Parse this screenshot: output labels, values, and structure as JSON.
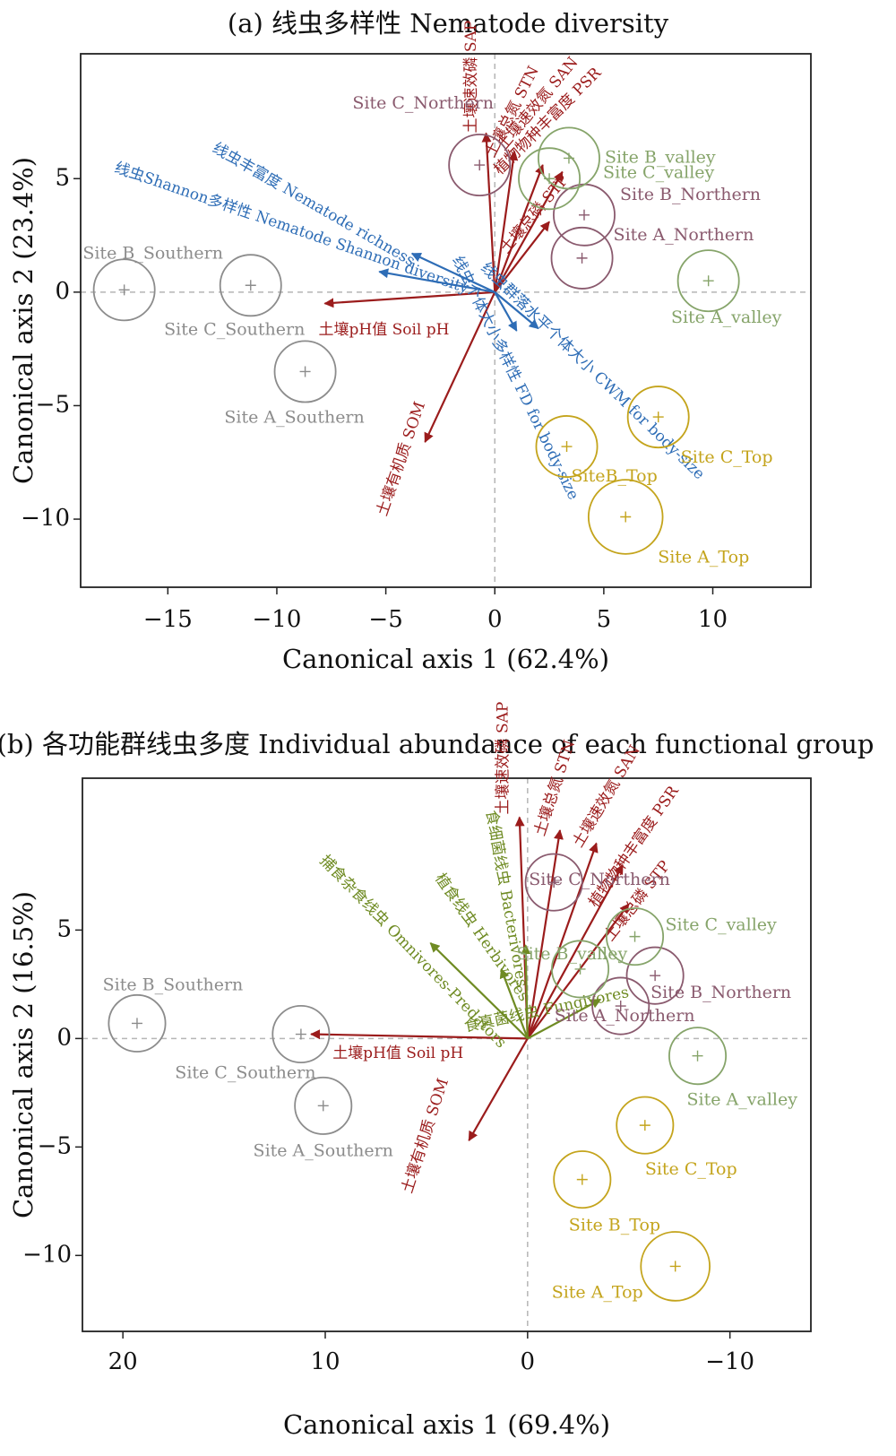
{
  "colors": {
    "soil": "#9b1c1c",
    "diversity": "#2e6db6",
    "functional": "#6f8b23",
    "southern": "#8c8c8c",
    "northern": "#8a5a6e",
    "valley": "#86a46a",
    "top": "#c4a41c"
  },
  "chart_data": [
    {
      "type": "scatter",
      "title": "(a) 线虫多样性 Nematode diversity",
      "xlabel": "Canonical axis 1 (62.4%)",
      "ylabel": "Canonical axis 2 (23.4%)",
      "xlim": [
        -19,
        14.5
      ],
      "ylim": [
        -13,
        10.5
      ],
      "xticks": [
        -15,
        -10,
        -5,
        0,
        5,
        10
      ],
      "yticks": [
        -10,
        -5,
        0,
        5
      ],
      "xtick_labels": [
        "−15",
        "−10",
        "−5",
        "0",
        "5",
        "10"
      ],
      "ytick_labels": [
        "−10",
        "−5",
        "0",
        "5"
      ],
      "sites": [
        {
          "name": "Site B_Southern",
          "group": "southern",
          "x": -17.0,
          "y": 0.1,
          "r": 1.4
        },
        {
          "name": "Site C_Southern",
          "group": "southern",
          "x": -11.2,
          "y": 0.3,
          "r": 1.4
        },
        {
          "name": "Site A_Southern",
          "group": "southern",
          "x": -8.7,
          "y": -3.5,
          "r": 1.4
        },
        {
          "name": "Site C_Northern",
          "group": "northern",
          "x": -0.7,
          "y": 5.6,
          "r": 1.4
        },
        {
          "name": "Site B_Northern",
          "group": "northern",
          "x": 4.1,
          "y": 3.4,
          "r": 1.4
        },
        {
          "name": "Site A_Northern",
          "group": "northern",
          "x": 4.0,
          "y": 1.5,
          "r": 1.4
        },
        {
          "name": "Site B_valley",
          "group": "valley",
          "x": 3.4,
          "y": 5.9,
          "r": 1.4
        },
        {
          "name": "Site C_valley",
          "group": "valley",
          "x": 2.5,
          "y": 5.0,
          "r": 1.4
        },
        {
          "name": "Site A_valley",
          "group": "valley",
          "x": 9.8,
          "y": 0.5,
          "r": 1.4
        },
        {
          "name": "Site C_Top",
          "group": "top",
          "x": 7.5,
          "y": -5.5,
          "r": 1.4
        },
        {
          "name": "SiteB_Top",
          "group": "top",
          "x": 3.3,
          "y": -6.8,
          "r": 1.4
        },
        {
          "name": "Site A_Top",
          "group": "top",
          "x": 6.0,
          "y": -9.9,
          "r": 1.7
        }
      ],
      "vectors": [
        {
          "label": "土壤速效磷 SAP",
          "group": "soil",
          "x": -0.4,
          "y": 7.0
        },
        {
          "label": "土壤总氮 STN",
          "group": "soil",
          "x": 0.9,
          "y": 6.2
        },
        {
          "label": "土壤速效氮 SAN",
          "group": "soil",
          "x": 2.2,
          "y": 5.6
        },
        {
          "label": "植物物种丰富度 PSR",
          "group": "soil",
          "x": 3.1,
          "y": 5.3
        },
        {
          "label": "土壤总磷 STP",
          "group": "soil",
          "x": 2.5,
          "y": 3.1
        },
        {
          "label": "土壤pH值 Soil pH",
          "group": "soil",
          "x": -7.8,
          "y": -0.5
        },
        {
          "label": "土壤有机质 SOM",
          "group": "soil",
          "x": -3.2,
          "y": -6.6
        },
        {
          "label": "线虫丰富度 Nematode richness",
          "group": "diversity",
          "x": -3.8,
          "y": 1.7
        },
        {
          "label": "线虫Shannon多样性 Nematode Shannon diversity",
          "group": "diversity",
          "x": -5.3,
          "y": 0.9
        },
        {
          "label": "线虫群落水平个体大小 CWM for body-size",
          "group": "diversity",
          "x": 2.0,
          "y": -1.6
        },
        {
          "label": "线虫个体大小多样性 FD for body-size",
          "group": "diversity",
          "x": 1.0,
          "y": -1.7
        }
      ]
    },
    {
      "type": "scatter",
      "title": "(b) 各功能群线虫多度 Individual abundance of  each functional group",
      "xlabel": "Canonical axis 1 (69.4%)",
      "ylabel": "Canonical axis 2 (16.5%)",
      "xlim": [
        22,
        -14
      ],
      "ylim": [
        -13.5,
        12
      ],
      "xticks": [
        20,
        10,
        0,
        -10
      ],
      "yticks": [
        -10,
        -5,
        0,
        5
      ],
      "xtick_labels": [
        "20",
        "10",
        "0",
        "−10"
      ],
      "ytick_labels": [
        "−10",
        "−5",
        "0",
        "5"
      ],
      "sites": [
        {
          "name": "Site B_Southern",
          "group": "southern",
          "x": 19.3,
          "y": 0.7,
          "r": 1.4
        },
        {
          "name": "Site C_Southern",
          "group": "southern",
          "x": 11.2,
          "y": 0.2,
          "r": 1.4
        },
        {
          "name": "Site A_Southern",
          "group": "southern",
          "x": 10.1,
          "y": -3.1,
          "r": 1.4
        },
        {
          "name": "Site C_Northern",
          "group": "northern",
          "x": -1.3,
          "y": 7.2,
          "r": 1.4
        },
        {
          "name": "Site B_Northern",
          "group": "northern",
          "x": -6.3,
          "y": 2.9,
          "r": 1.4
        },
        {
          "name": "Site A_Northern",
          "group": "northern",
          "x": -4.6,
          "y": 1.5,
          "r": 1.4
        },
        {
          "name": "Site C_valley",
          "group": "valley",
          "x": -5.3,
          "y": 4.7,
          "r": 1.4
        },
        {
          "name": "Site B_valley",
          "group": "valley",
          "x": -2.6,
          "y": 3.2,
          "r": 1.4
        },
        {
          "name": "Site A_valley",
          "group": "valley",
          "x": -8.4,
          "y": -0.8,
          "r": 1.4
        },
        {
          "name": "Site C_Top",
          "group": "top",
          "x": -5.8,
          "y": -4.0,
          "r": 1.4
        },
        {
          "name": "Site B_Top",
          "group": "top",
          "x": -2.7,
          "y": -6.5,
          "r": 1.4
        },
        {
          "name": "Site A_Top",
          "group": "top",
          "x": -7.3,
          "y": -10.5,
          "r": 1.7
        }
      ],
      "vectors": [
        {
          "label": "土壤速效磷 SAP",
          "group": "soil",
          "x": 0.4,
          "y": 10.2
        },
        {
          "label": "土壤总氮 STN",
          "group": "soil",
          "x": -1.6,
          "y": 9.6
        },
        {
          "label": "土壤速效氮 SAN",
          "group": "soil",
          "x": -3.4,
          "y": 9.0
        },
        {
          "label": "植物物种丰富度 PSR",
          "group": "soil",
          "x": -4.7,
          "y": 8.0
        },
        {
          "label": "土壤总磷 STP",
          "group": "soil",
          "x": -5.0,
          "y": 6.2
        },
        {
          "label": "土壤pH值 Soil pH",
          "group": "soil",
          "x": 10.7,
          "y": 0.2
        },
        {
          "label": "土壤有机质 SOM",
          "group": "soil",
          "x": 2.9,
          "y": -4.7
        },
        {
          "label": "捕食杂食线虫 Omnivores-Predators",
          "group": "functional",
          "x": 4.8,
          "y": 4.4
        },
        {
          "label": "植食线虫 Herbivores",
          "group": "functional",
          "x": 1.3,
          "y": 3.2
        },
        {
          "label": "食细菌线虫 Bacterivores",
          "group": "functional",
          "x": 0.1,
          "y": 4.3
        },
        {
          "label": "食真菌线虫 Fungivores",
          "group": "functional",
          "x": -3.6,
          "y": 1.8
        }
      ]
    }
  ]
}
